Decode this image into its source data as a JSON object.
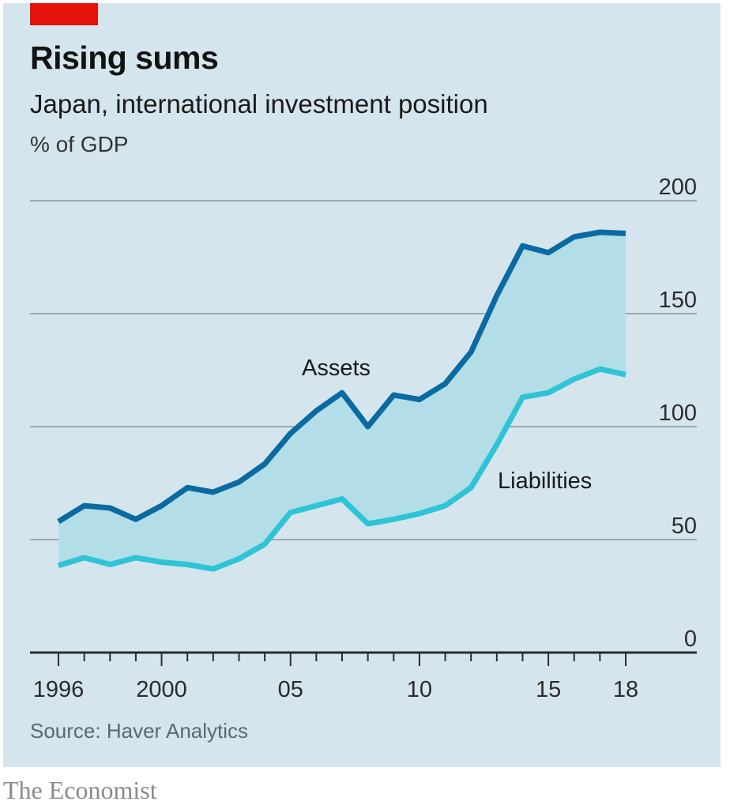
{
  "header": {
    "title": "Rising sums",
    "subtitle": "Japan, international investment position",
    "unit": "% of GDP"
  },
  "footer": {
    "source": "Source: Haver Analytics",
    "brand": "The Economist"
  },
  "colors": {
    "assets": "#0b6aa2",
    "liabilities": "#2ec4d6",
    "fill": "#b3dde7",
    "background": "#d5e5ee",
    "accent": "#e3120b"
  },
  "chart_data": {
    "type": "line",
    "title": "Rising sums",
    "subtitle": "Japan, international investment position",
    "ylabel": "% of GDP",
    "xlabel": "",
    "ylim": [
      0,
      200
    ],
    "xlim": [
      1996,
      2018
    ],
    "grid": true,
    "y_axis_side": "right",
    "yticks": [
      0,
      50,
      100,
      150,
      200
    ],
    "ytick_labels": [
      "0",
      "50",
      "100",
      "150",
      "200"
    ],
    "xticks_major": [
      1996,
      2000,
      2005,
      2010,
      2015,
      2018
    ],
    "xtick_labels": [
      "1996",
      "2000",
      "05",
      "10",
      "15",
      "18"
    ],
    "x": [
      1996,
      1997,
      1998,
      1999,
      2000,
      2001,
      2002,
      2003,
      2004,
      2005,
      2006,
      2007,
      2008,
      2009,
      2010,
      2011,
      2012,
      2013,
      2014,
      2015,
      2016,
      2017,
      2018
    ],
    "series": [
      {
        "name": "Assets",
        "values": [
          58,
          65,
          64,
          59,
          65,
          73,
          71,
          75.5,
          83.5,
          97,
          107,
          115,
          100,
          114,
          112,
          119,
          133,
          158,
          180,
          177,
          184,
          186,
          185.5
        ]
      },
      {
        "name": "Liabilities",
        "values": [
          38.5,
          42,
          39,
          42,
          40,
          39,
          37,
          41.5,
          48,
          62,
          65,
          68,
          57,
          59,
          61.5,
          65,
          73,
          92,
          113,
          115,
          121,
          125.5,
          123
        ]
      }
    ],
    "annotations": [
      {
        "text": "Assets",
        "series": "Assets"
      },
      {
        "text": "Liabilities",
        "series": "Liabilities"
      }
    ],
    "shaded_between_series": true,
    "source": "Source: Haver Analytics"
  }
}
